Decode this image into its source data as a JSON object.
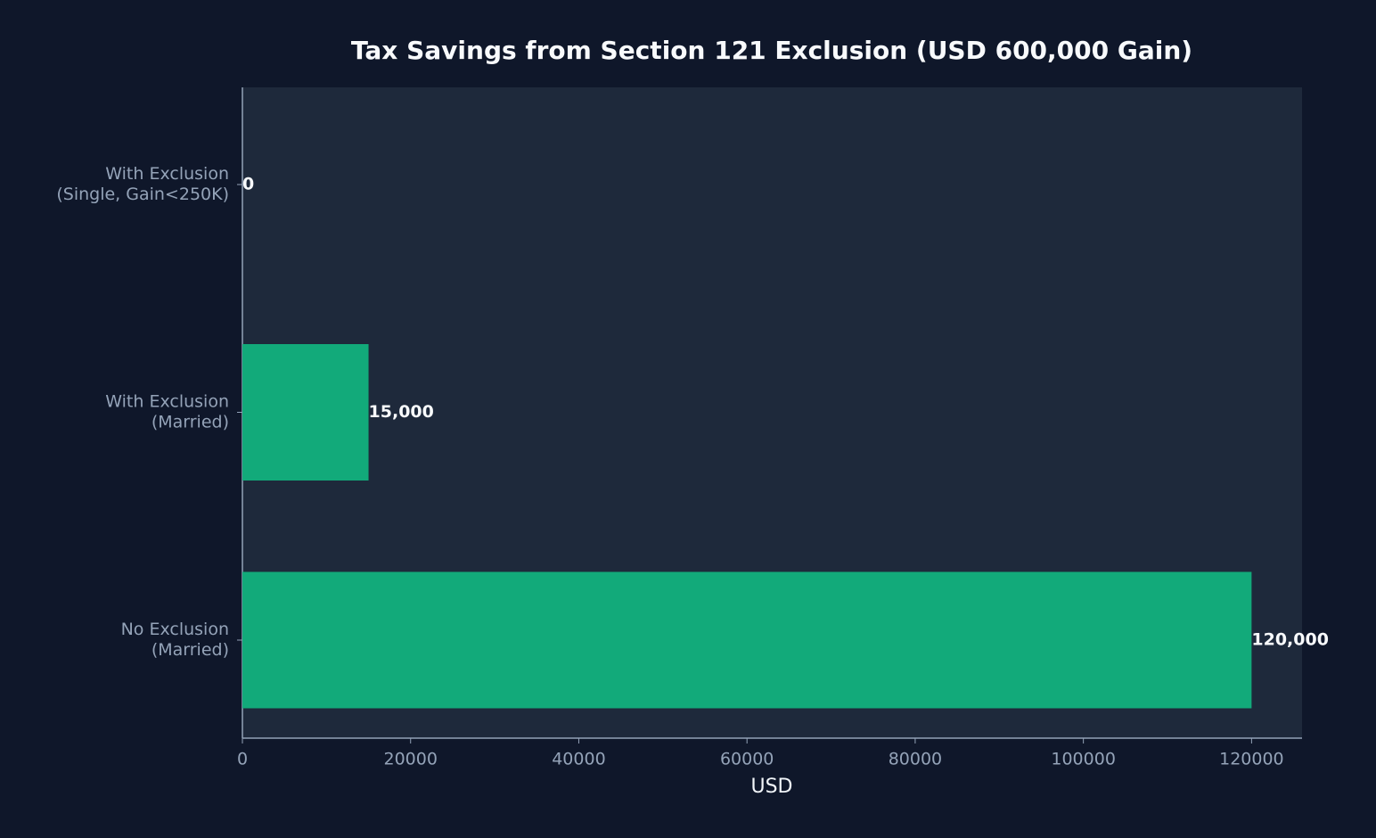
{
  "chart_data": {
    "type": "barh",
    "title": "Tax Savings from Section 121 Exclusion (USD 600,000 Gain)",
    "x_label": "USD",
    "categories": [
      [
        "No Exclusion",
        "(Married)"
      ],
      [
        "With Exclusion",
        "(Married)"
      ],
      [
        "With Exclusion",
        "(Single, Gain<250K)"
      ]
    ],
    "values": [
      120000,
      15000,
      0
    ],
    "value_labels": [
      "120,000",
      "15,000",
      "0"
    ],
    "color": "#12aa7a",
    "xlim": [
      0,
      126000
    ],
    "xticks": [
      0,
      20000,
      40000,
      60000,
      80000,
      100000,
      120000
    ],
    "grid": false
  }
}
